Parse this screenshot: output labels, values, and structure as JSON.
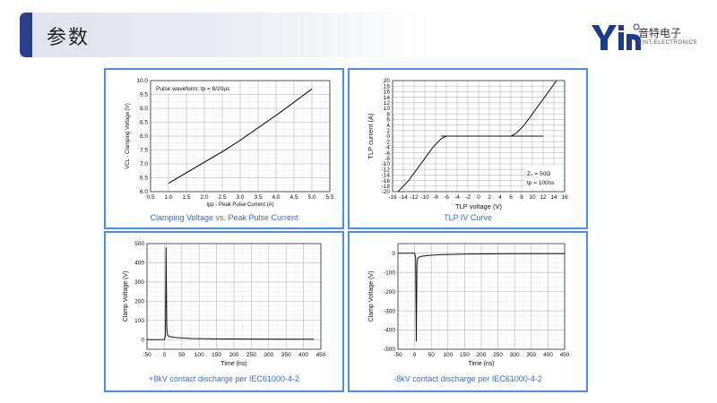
{
  "header": {
    "title": "参数",
    "logo_cn": "音特电子",
    "logo_en": "YINT ELECTRONICS"
  },
  "charts": [
    {
      "caption": "Clamping Voltage vs. Peak Pulse Current",
      "annotation": "Pulse waveform: tp = 8/20µs",
      "chart_data": {
        "type": "line",
        "xlabel": "Ipp - Peak Pulse Current (A)",
        "ylabel": "VCL - Clamping Voltage (V)",
        "xlim": [
          0.5,
          5.5
        ],
        "ylim": [
          6.0,
          10.0
        ],
        "xticks": [
          "0.5",
          "1.0",
          "1.5",
          "2.0",
          "2.5",
          "3.0",
          "3.5",
          "4.0",
          "4.5",
          "5.0",
          "5.5"
        ],
        "yticks": [
          "6.0",
          "6.5",
          "7.0",
          "7.5",
          "8.0",
          "8.5",
          "9.0",
          "9.5",
          "10.0"
        ],
        "grid": true,
        "series": [
          {
            "x": [
              1.0,
              1.5,
              2.0,
              2.5,
              3.0,
              3.5,
              4.0,
              4.5,
              5.0
            ],
            "y": [
              6.3,
              6.68,
              7.06,
              7.44,
              7.85,
              8.3,
              8.75,
              9.22,
              9.7
            ]
          }
        ]
      }
    },
    {
      "caption": "TLP IV Curve",
      "annotation": [
        "Z₀ = 50Ω",
        "tp = 100ns"
      ],
      "chart_data": {
        "type": "line",
        "xlabel": "TLP voltage (V)",
        "ylabel": "TLP current (A)",
        "xlim": [
          -16,
          16
        ],
        "ylim": [
          -20,
          20
        ],
        "xticks": [
          "-16",
          "-14",
          "-12",
          "-10",
          "-8",
          "-6",
          "-4",
          "-2",
          "0",
          "2",
          "4",
          "6",
          "8",
          "10",
          "12",
          "14",
          "16"
        ],
        "yticks": [
          "-20",
          "-18",
          "-16",
          "-14",
          "-12",
          "-10",
          "-8",
          "-6",
          "-4",
          "-2",
          "0",
          "2",
          "4",
          "6",
          "8",
          "10",
          "12",
          "14",
          "16",
          "18",
          "20"
        ],
        "grid": true,
        "series": [
          {
            "x": [
              -6.0,
              -7.0,
              -8.5,
              -10.0,
              -11.5,
              -13.0,
              -14.5,
              -15.0
            ],
            "y": [
              0,
              -1,
              -4,
              -8,
              -12,
              -16,
              -19,
              -20
            ]
          },
          {
            "x": [
              -7.0,
              12.0
            ],
            "y": [
              0,
              0
            ]
          },
          {
            "x": [
              6.0,
              7.0,
              8.5,
              10.0,
              11.5,
              13.0,
              14.5
            ],
            "y": [
              0,
              1,
              4,
              8,
              12,
              16,
              20
            ]
          }
        ]
      }
    },
    {
      "caption": "+8kV contact discharge per IEC61000-4-2",
      "chart_data": {
        "type": "line",
        "xlabel": "Time (ns)",
        "ylabel": "Clamp Voltage (V)",
        "xlim": [
          -50,
          450
        ],
        "ylim": [
          -50,
          500
        ],
        "xticks": [
          "-50",
          "0",
          "50",
          "100",
          "150",
          "200",
          "250",
          "300",
          "350",
          "400",
          "450"
        ],
        "yticks": [
          "0",
          "100",
          "200",
          "300",
          "400",
          "500"
        ],
        "grid": true,
        "series": [
          {
            "x": [
              -50,
              0,
              3,
              5,
              7,
              9,
              12,
              20,
              40,
              80,
              150,
              250,
              350,
              430
            ],
            "y": [
              0,
              0,
              20,
              480,
              60,
              25,
              18,
              14,
              10,
              6,
              4,
              3,
              2,
              2
            ]
          }
        ]
      }
    },
    {
      "caption": "-8kV contact discharge per IEC61000-4-2",
      "chart_data": {
        "type": "line",
        "xlabel": "Time (ns)",
        "ylabel": "Clamp Voltage (V)",
        "xlim": [
          -50,
          450
        ],
        "ylim": [
          -500,
          50
        ],
        "xticks": [
          "-50",
          "0",
          "50",
          "100",
          "150",
          "200",
          "250",
          "300",
          "350",
          "400",
          "450"
        ],
        "yticks": [
          "0",
          "-100",
          "-200",
          "-300",
          "-400",
          "-500"
        ],
        "grid": true,
        "series": [
          {
            "x": [
              -50,
              0,
              3,
              5,
              7,
              9,
              12,
              20,
              40,
              80,
              150,
              250,
              350,
              450
            ],
            "y": [
              0,
              0,
              -20,
              -460,
              -60,
              -30,
              -22,
              -16,
              -12,
              -8,
              -5,
              -3,
              -2,
              -2
            ]
          }
        ]
      }
    }
  ]
}
